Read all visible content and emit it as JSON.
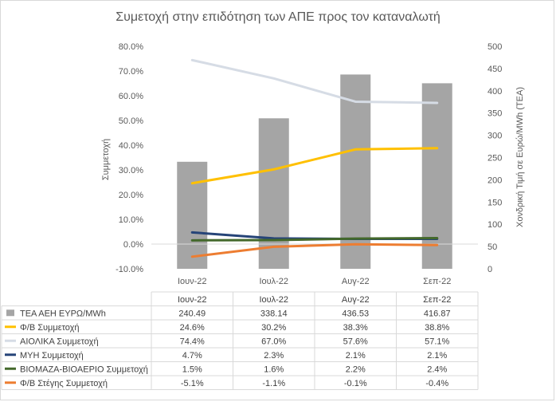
{
  "chart_data": {
    "type": "bar-line-combo-with-data-table",
    "title": "Συμετοχή στην επιδότηση των ΑΠΕ προς τον καταναλωτή",
    "categories": [
      "Ιουν-22",
      "Ιουλ-22",
      "Αυγ-22",
      "Σεπ-22"
    ],
    "y_left": {
      "label": "Συμμετοχή",
      "min": -0.1,
      "max": 0.8,
      "step": 0.1,
      "ticks": [
        "-10.0%",
        "0.0%",
        "10.0%",
        "20.0%",
        "30.0%",
        "40.0%",
        "50.0%",
        "60.0%",
        "70.0%",
        "80.0%"
      ]
    },
    "y_right": {
      "label": "Χονδρική Τιμή σε Ευρώ/MWh (ΤΕΑ)",
      "min": 0,
      "max": 500,
      "step": 50,
      "ticks": [
        "0",
        "50",
        "100",
        "150",
        "200",
        "250",
        "300",
        "350",
        "400",
        "450",
        "500"
      ]
    },
    "grid": false,
    "legend": "data-table",
    "series": [
      {
        "name": "ΤΕΑ ΑΕΗ ΕΥΡΩ/MWh",
        "type": "bar",
        "axis": "right",
        "color": "#a5a5a5",
        "values": [
          240.49,
          338.14,
          436.53,
          416.87
        ],
        "labels": [
          "240.49",
          "338.14",
          "436.53",
          "416.87"
        ]
      },
      {
        "name": "Φ/Β Συμμετοχή",
        "type": "line",
        "axis": "left",
        "color": "#ffc000",
        "values": [
          0.246,
          0.302,
          0.383,
          0.388
        ],
        "labels": [
          "24.6%",
          "30.2%",
          "38.3%",
          "38.8%"
        ]
      },
      {
        "name": "ΑΙΟΛΙΚΑ Συμμετοχή",
        "type": "line",
        "axis": "left",
        "color": "#d6dce5",
        "values": [
          0.744,
          0.67,
          0.576,
          0.571
        ],
        "labels": [
          "74.4%",
          "67.0%",
          "57.6%",
          "57.1%"
        ]
      },
      {
        "name": "ΜΥΗ Συμμετοχή",
        "type": "line",
        "axis": "left",
        "color": "#264478",
        "values": [
          0.047,
          0.023,
          0.021,
          0.021
        ],
        "labels": [
          "4.7%",
          "2.3%",
          "2.1%",
          "2.1%"
        ]
      },
      {
        "name": "ΒΙΟΜΑΖΑ-ΒΙΟΑΕΡΙΟ Συμμετοχή",
        "type": "line",
        "axis": "left",
        "color": "#43682b",
        "values": [
          0.015,
          0.016,
          0.022,
          0.024
        ],
        "labels": [
          "1.5%",
          "1.6%",
          "2.2%",
          "2.4%"
        ]
      },
      {
        "name": "Φ/Β Στέγης Συμμετοχή",
        "type": "line",
        "axis": "left",
        "color": "#ed7d31",
        "values": [
          -0.051,
          -0.011,
          -0.001,
          -0.004
        ],
        "labels": [
          "-5.1%",
          "-1.1%",
          "-0.1%",
          "-0.4%"
        ]
      }
    ]
  }
}
